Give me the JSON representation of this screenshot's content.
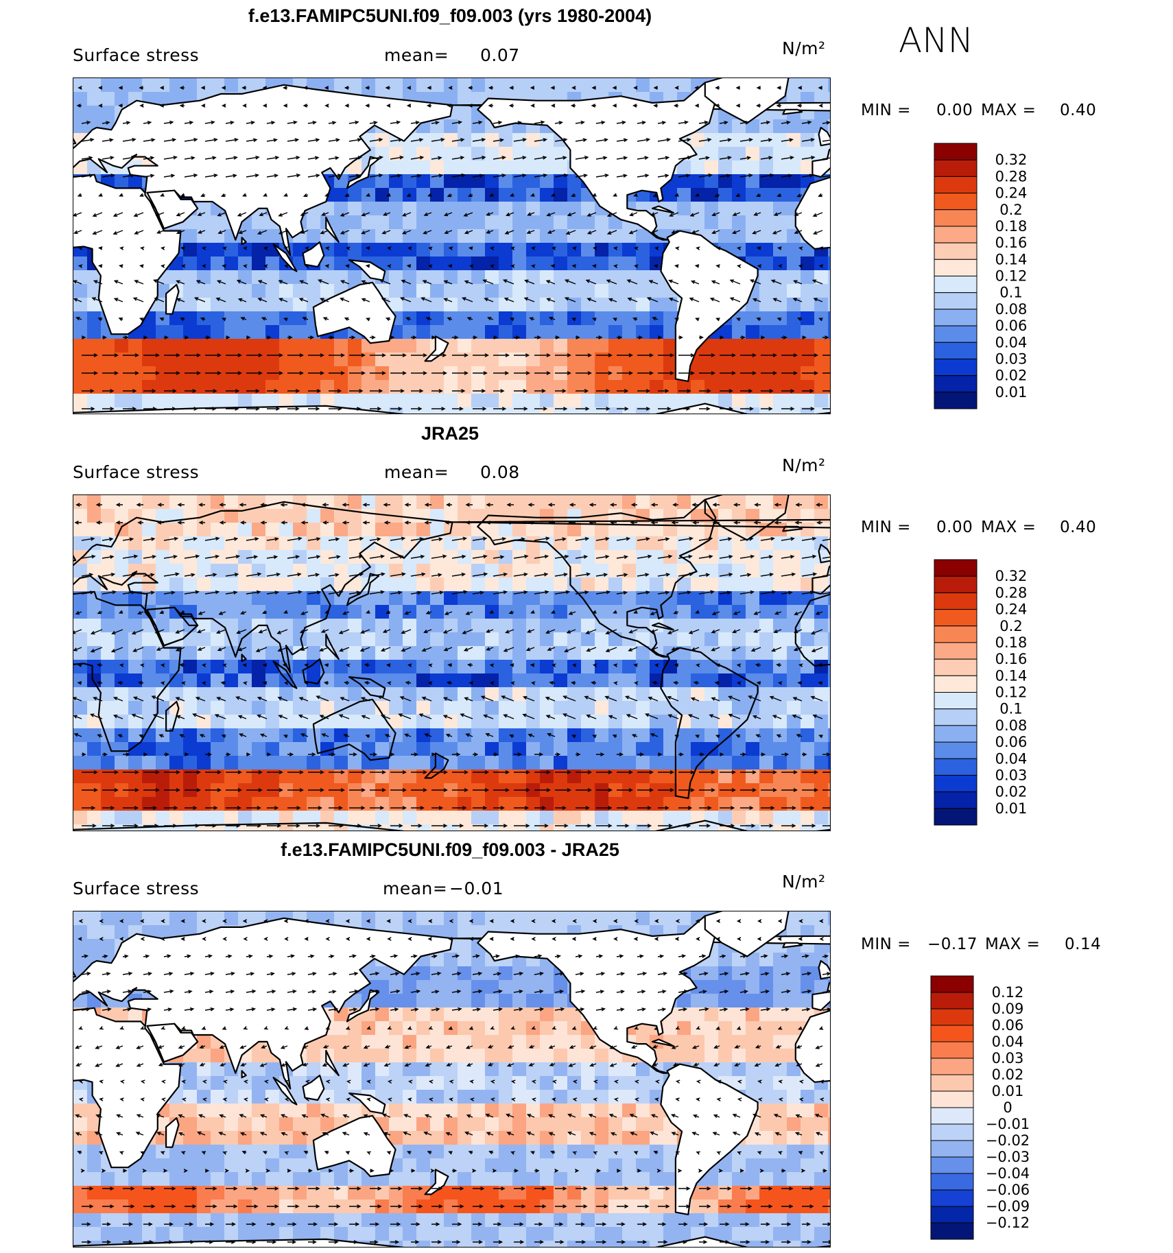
{
  "season": "ANN",
  "panels": [
    {
      "id": "model",
      "title": "f.e13.FAMIPC5UNI.f09_f09.003 (yrs 1980-2004)",
      "field": "Surface stress",
      "mean_label": "mean=",
      "mean_value": "0.07",
      "units": "N/m²",
      "min_label": "MIN =",
      "min_value": "0.00",
      "max_label": "MAX =",
      "max_value": "0.40",
      "levels": [
        "0.32",
        "0.28",
        "0.24",
        "0.2",
        "0.18",
        "0.16",
        "0.14",
        "0.12",
        "0.1",
        "0.08",
        "0.06",
        "0.04",
        "0.03",
        "0.02",
        "0.01"
      ],
      "colors": [
        "#8b0000",
        "#b91d0a",
        "#dc3a0e",
        "#f05a1e",
        "#f88654",
        "#fba987",
        "#fccdb4",
        "#fde8da",
        "#d7e9fb",
        "#b6cff7",
        "#8bb0f2",
        "#5b8ce9",
        "#2b62e0",
        "#0b3bd1",
        "#0423a8",
        "#031678"
      ]
    },
    {
      "id": "obs",
      "title": "JRA25",
      "field": "Surface stress",
      "mean_label": "mean=",
      "mean_value": "0.08",
      "units": "N/m²",
      "min_label": "MIN =",
      "min_value": "0.00",
      "max_label": "MAX =",
      "max_value": "0.40",
      "levels": [
        "0.32",
        "0.28",
        "0.24",
        "0.2",
        "0.18",
        "0.16",
        "0.14",
        "0.12",
        "0.1",
        "0.08",
        "0.06",
        "0.04",
        "0.03",
        "0.02",
        "0.01"
      ],
      "colors": [
        "#8b0000",
        "#b91d0a",
        "#dc3a0e",
        "#f05a1e",
        "#f88654",
        "#fba987",
        "#fccdb4",
        "#fde8da",
        "#d7e9fb",
        "#b6cff7",
        "#8bb0f2",
        "#5b8ce9",
        "#2b62e0",
        "#0b3bd1",
        "#0423a8",
        "#031678"
      ]
    },
    {
      "id": "diff",
      "title": "f.e13.FAMIPC5UNI.f09_f09.003 - JRA25",
      "field": "Surface stress",
      "mean_label": "mean=",
      "mean_value": "−0.01",
      "units": "N/m²",
      "min_label": "MIN =",
      "min_value": "−0.17",
      "max_label": "MAX =",
      "max_value": "0.14",
      "levels": [
        "0.12",
        "0.09",
        "0.06",
        "0.04",
        "0.03",
        "0.02",
        "0.01",
        "0",
        "−0.01",
        "−0.02",
        "−0.03",
        "−0.04",
        "−0.06",
        "−0.09",
        "−0.12"
      ],
      "colors": [
        "#8b0000",
        "#b91d0a",
        "#dc3a0e",
        "#f5551c",
        "#f97d4e",
        "#fba583",
        "#fcc8ae",
        "#fde4d6",
        "#dde9fb",
        "#bcd2f6",
        "#93b4f1",
        "#6690ea",
        "#3a6ae2",
        "#1542d4",
        "#0426a8",
        "#031678"
      ]
    }
  ]
}
